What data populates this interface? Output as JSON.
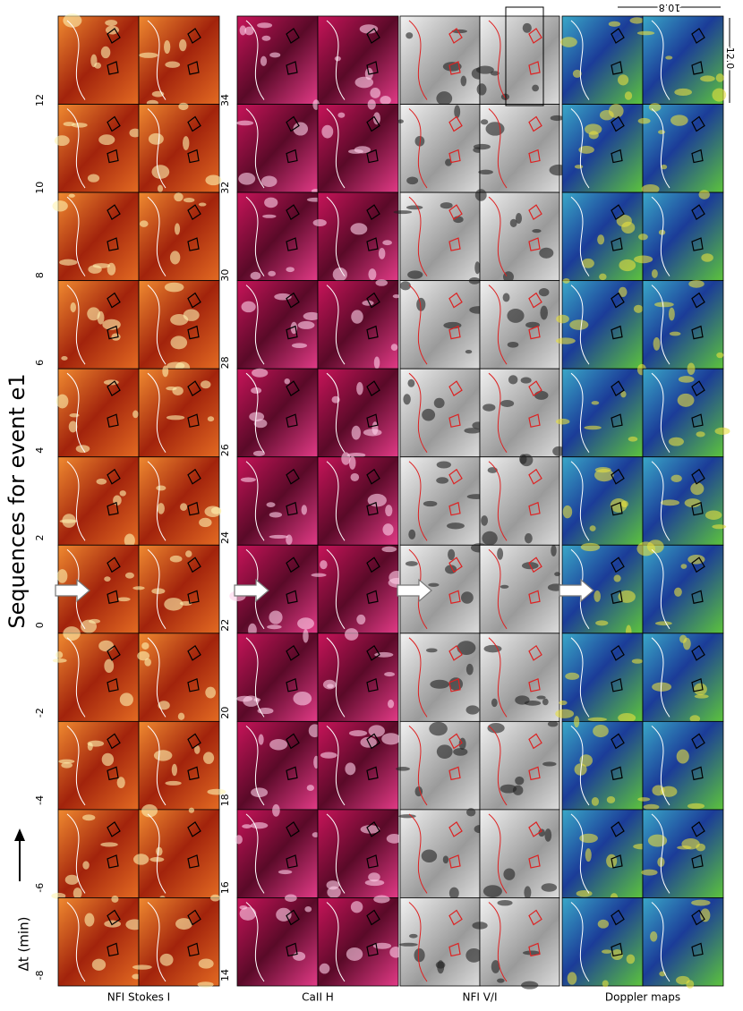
{
  "figure": {
    "title": "Sequences for event e1",
    "y_label": "Δt (min)",
    "left_ticks": [
      -8,
      -6,
      -4,
      -2,
      0,
      2,
      4,
      6,
      8,
      10,
      12
    ],
    "right_ticks": [
      14,
      16,
      18,
      20,
      22,
      24,
      26,
      28,
      30,
      32,
      34
    ],
    "columns": [
      "NFI Stokes I",
      "CaII H",
      "NFI  V/I",
      "Doppler maps"
    ],
    "scale_x": "10.8",
    "scale_y": "12.0"
  }
}
